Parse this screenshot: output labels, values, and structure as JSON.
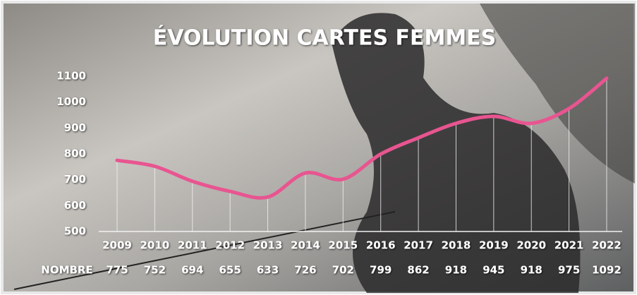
{
  "chart_data": {
    "type": "line",
    "title": "ÉVOLUTION CARTES FEMMES",
    "categories": [
      "2009",
      "2010",
      "2011",
      "2012",
      "2013",
      "2014",
      "2015",
      "2016",
      "2017",
      "2018",
      "2019",
      "2020",
      "2021",
      "2022"
    ],
    "series": [
      {
        "name": "NOMBRE",
        "color": "#e85590",
        "values": [
          775,
          752,
          694,
          655,
          633,
          726,
          702,
          799,
          862,
          918,
          945,
          918,
          975,
          1092
        ]
      }
    ],
    "ylim": [
      500,
      1100
    ],
    "yticks": [
      500,
      600,
      700,
      800,
      900,
      1000,
      1100
    ]
  }
}
